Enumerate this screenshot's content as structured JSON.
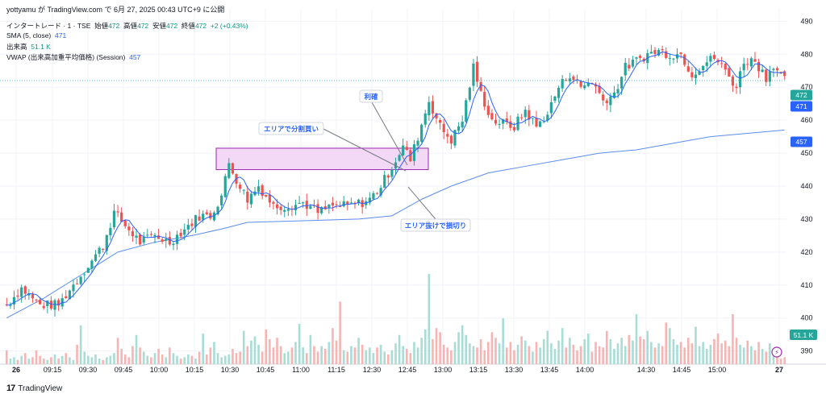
{
  "header": {
    "attribution": "yottyamu が TradingView.com で 6月 27, 2025 00:43 UTC+9 に公開",
    "symbol": "インタートレード · 1 · TSE",
    "open_label": "始値",
    "open": "472",
    "high_label": "高値",
    "high": "472",
    "low_label": "安値",
    "low": "472",
    "close_label": "終値",
    "close": "472",
    "change": "+2 (+0.43%)",
    "sma_label": "SMA (5, close)",
    "sma_value": "471",
    "volume_label": "出来高",
    "volume_value": "51.1 K",
    "vwap_label": "VWAP (出来高加重平均価格) (Session)",
    "vwap_value": "457"
  },
  "footer": {
    "brand": "TradingView"
  },
  "colors": {
    "up": "#26a69a",
    "down": "#ef5350",
    "sma": "#2962ff",
    "vwap": "#5b8def",
    "zone": "#f3d9f6",
    "zone_border": "#9c27b0"
  },
  "chart_data": {
    "type": "candlestick",
    "x_ticks": [
      "26",
      "09:15",
      "09:30",
      "09:45",
      "10:00",
      "10:15",
      "10:30",
      "10:45",
      "11:00",
      "11:15",
      "12:30",
      "12:45",
      "13:00",
      "13:15",
      "13:30",
      "13:45",
      "14:00",
      "14:30",
      "14:45",
      "15:00",
      "27"
    ],
    "y_ticks": [
      390,
      400,
      410,
      420,
      430,
      440,
      450,
      460,
      470,
      480,
      490
    ],
    "ylim": [
      386,
      494
    ],
    "last_price": 472,
    "sma_last": 471,
    "vwap_last": 457,
    "volume_last": "51.1 K",
    "zone": {
      "price_low": 445,
      "price_high": 451.5
    },
    "path_points": [
      {
        "t": 0,
        "p": 404
      },
      {
        "t": 4,
        "p": 409
      },
      {
        "t": 9,
        "p": 404
      },
      {
        "t": 14,
        "p": 404
      },
      {
        "t": 20,
        "p": 413
      },
      {
        "t": 26,
        "p": 422
      },
      {
        "t": 29,
        "p": 432
      },
      {
        "t": 32,
        "p": 428
      },
      {
        "t": 36,
        "p": 423
      },
      {
        "t": 40,
        "p": 425
      },
      {
        "t": 44,
        "p": 423
      },
      {
        "t": 48,
        "p": 427
      },
      {
        "t": 52,
        "p": 431
      },
      {
        "t": 55,
        "p": 431
      },
      {
        "t": 58,
        "p": 437
      },
      {
        "t": 60,
        "p": 447
      },
      {
        "t": 62,
        "p": 442
      },
      {
        "t": 65,
        "p": 436
      },
      {
        "t": 68,
        "p": 440
      },
      {
        "t": 72,
        "p": 434
      },
      {
        "t": 76,
        "p": 434
      },
      {
        "t": 80,
        "p": 435
      },
      {
        "t": 84,
        "p": 432
      },
      {
        "t": 88,
        "p": 434
      },
      {
        "t": 92,
        "p": 434
      },
      {
        "t": 96,
        "p": 435
      },
      {
        "t": 98,
        "p": 436
      },
      {
        "t": 101,
        "p": 440
      },
      {
        "t": 104,
        "p": 446
      },
      {
        "t": 107,
        "p": 452
      },
      {
        "t": 109,
        "p": 448
      },
      {
        "t": 111,
        "p": 455
      },
      {
        "t": 114,
        "p": 466
      },
      {
        "t": 117,
        "p": 458
      },
      {
        "t": 120,
        "p": 454
      },
      {
        "t": 123,
        "p": 460
      },
      {
        "t": 126,
        "p": 476
      },
      {
        "t": 128,
        "p": 468
      },
      {
        "t": 131,
        "p": 460
      },
      {
        "t": 134,
        "p": 459
      },
      {
        "t": 137,
        "p": 458
      },
      {
        "t": 140,
        "p": 463
      },
      {
        "t": 143,
        "p": 458
      },
      {
        "t": 146,
        "p": 462
      },
      {
        "t": 149,
        "p": 470
      },
      {
        "t": 152,
        "p": 474
      },
      {
        "t": 155,
        "p": 470
      },
      {
        "t": 158,
        "p": 472
      },
      {
        "t": 161,
        "p": 466
      },
      {
        "t": 164,
        "p": 468
      },
      {
        "t": 167,
        "p": 476
      },
      {
        "t": 170,
        "p": 478
      },
      {
        "t": 173,
        "p": 480
      },
      {
        "t": 176,
        "p": 481
      },
      {
        "t": 179,
        "p": 480
      },
      {
        "t": 182,
        "p": 480
      },
      {
        "t": 185,
        "p": 474
      },
      {
        "t": 188,
        "p": 477
      },
      {
        "t": 191,
        "p": 479
      },
      {
        "t": 194,
        "p": 475
      },
      {
        "t": 197,
        "p": 470
      },
      {
        "t": 199,
        "p": 478
      },
      {
        "t": 202,
        "p": 478
      },
      {
        "t": 205,
        "p": 473
      },
      {
        "t": 207,
        "p": 477
      },
      {
        "t": 210,
        "p": 472
      }
    ],
    "vwap_points": [
      {
        "t": 0,
        "p": 400
      },
      {
        "t": 10,
        "p": 406
      },
      {
        "t": 20,
        "p": 413
      },
      {
        "t": 30,
        "p": 420
      },
      {
        "t": 40,
        "p": 423
      },
      {
        "t": 50,
        "p": 425
      },
      {
        "t": 58,
        "p": 427
      },
      {
        "t": 65,
        "p": 429
      },
      {
        "t": 80,
        "p": 429.5
      },
      {
        "t": 95,
        "p": 430
      },
      {
        "t": 104,
        "p": 431
      },
      {
        "t": 112,
        "p": 436
      },
      {
        "t": 120,
        "p": 440
      },
      {
        "t": 130,
        "p": 444
      },
      {
        "t": 140,
        "p": 446
      },
      {
        "t": 150,
        "p": 448
      },
      {
        "t": 160,
        "p": 450
      },
      {
        "t": 170,
        "p": 451
      },
      {
        "t": 180,
        "p": 453
      },
      {
        "t": 190,
        "p": 455
      },
      {
        "t": 200,
        "p": 456
      },
      {
        "t": 210,
        "p": 457
      }
    ],
    "volume_bars_profile": [
      1,
      0.4,
      0.5,
      0.3,
      0.6,
      0.8,
      0.4,
      0.5,
      1.0,
      0.6,
      0.4,
      0.3,
      0.5,
      0.7,
      0.4,
      0.6,
      0.8,
      0.5,
      0.3,
      1.4,
      2.8,
      0.9,
      0.6,
      0.5,
      0.7,
      0.4,
      0.3,
      0.5,
      0.6,
      0.8,
      1.9,
      1.1,
      0.7,
      0.5,
      1.3,
      2.1,
      1.2,
      0.9,
      0.6,
      0.5,
      0.8,
      1.1,
      0.7,
      0.5,
      1.2,
      0.8,
      0.6,
      0.4,
      0.5,
      0.7,
      0.6,
      0.4,
      0.9,
      2.2,
      0.7,
      1.2,
      1.6,
      0.8,
      0.5,
      0.6,
      0.7,
      1.1,
      0.8,
      0.9,
      2.4,
      1.3,
      1.7,
      2.0,
      1.4,
      0.9,
      2.5,
      1.8,
      1.2,
      1.9,
      1.3,
      0.8,
      0.9,
      1.2,
      1.6,
      2.9,
      1.2,
      0.8,
      2.1,
      1.3,
      0.9,
      1.3,
      1.1,
      1.6,
      2.6,
      1.7,
      4.5,
      1.0,
      0.9,
      1.3,
      1.2,
      1.9,
      1.4,
      1.0,
      1.2,
      0.8,
      1.2,
      1.4,
      0.9,
      0.7,
      1.0,
      1.5,
      2.1,
      1.3,
      1.1,
      0.8,
      1.6,
      1.2,
      1.9,
      2.5,
      6.5,
      1.8,
      2.6,
      2.3,
      1.4,
      1.2,
      1.0,
      1.6,
      2.3,
      2.8,
      2.1,
      1.5,
      1.3,
      1.2,
      1.8,
      1.0,
      1.6,
      2.3,
      1.9,
      1.5,
      3.3,
      1.2,
      1.6,
      1.0,
      1.4,
      2.0,
      1.7,
      1.3,
      0.9,
      1.6,
      1.2,
      1.8,
      2.4,
      1.5,
      1.1,
      1.7,
      2.6,
      1.2,
      1.9,
      1.4,
      1.0,
      1.3,
      1.8,
      2.2,
      0.9,
      1.6,
      1.3,
      1.2,
      2.4,
      1.8,
      1.1,
      1.5,
      1.9,
      1.3,
      2.1,
      1.7,
      3.6,
      2.0,
      1.8,
      2.4,
      1.6,
      1.2,
      1.5,
      1.3,
      3.0,
      2.6,
      1.8,
      1.4,
      1.6,
      1.2,
      1.9,
      1.5,
      2.7,
      1.3,
      1.6,
      1.1,
      1.4,
      1.8,
      2.2,
      1.5,
      1.7,
      1.3,
      3.6,
      1.9,
      1.4,
      1.2,
      1.7,
      1.3,
      1.0,
      1.6,
      1.1,
      0.9,
      1.5,
      1.1
    ],
    "annotations": [
      {
        "text": "利確"
      },
      {
        "text": "エリアで分割買い"
      },
      {
        "text": "エリア抜けで損切り"
      }
    ]
  }
}
